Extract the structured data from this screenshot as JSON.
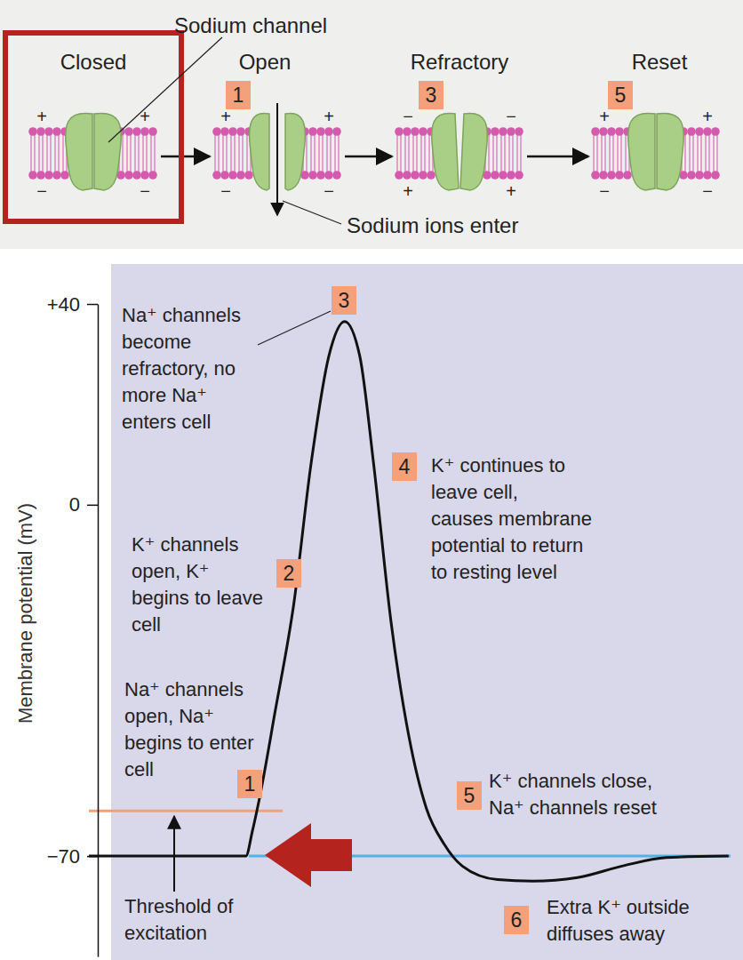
{
  "diagram": {
    "callout": "Sodium channel",
    "flow_label": "Sodium ions enter",
    "states": [
      {
        "label": "Closed",
        "step": null,
        "top_sign": "+",
        "bottom_sign": "−"
      },
      {
        "label": "Open",
        "step": 1,
        "top_sign": "+",
        "bottom_sign": "−"
      },
      {
        "label": "Refractory",
        "step": 3,
        "top_sign": "−",
        "bottom_sign": "+"
      },
      {
        "label": "Reset",
        "step": 5,
        "top_sign": "+",
        "bottom_sign": "−"
      }
    ]
  },
  "chart_data": {
    "type": "line",
    "y_label": "Membrane potential (mV)",
    "color": "#111111",
    "xlim": [
      0,
      100
    ],
    "ylim": [
      -90,
      40
    ],
    "yticks": [
      {
        "value": 40,
        "label": "+40"
      },
      0,
      {
        "value": -70,
        "label": "−70"
      }
    ],
    "tick_labels": "y",
    "grid": false,
    "x": [
      0,
      24,
      25,
      26,
      28.5,
      31.3,
      34,
      36.7,
      39.1,
      41.4,
      43.5,
      46.2,
      48.9,
      51.6,
      54.3,
      57.1,
      62.5,
      67.9,
      74.7,
      81.5,
      88.3,
      97.8
    ],
    "values": [
      -70,
      -70,
      -65,
      -59,
      -41,
      -20,
      8.5,
      29.7,
      36.5,
      29.7,
      8.5,
      -23.4,
      -46,
      -60.5,
      -67.6,
      -72,
      -74.7,
      -75,
      -74.3,
      -72,
      -70.3,
      -70
    ],
    "reference_lines": [
      {
        "value": -61,
        "color": "#f4a07a",
        "label": [
          "Threshold of",
          "excitation"
        ]
      },
      {
        "value": -70,
        "color": "#4fb3e8"
      }
    ],
    "annotations": [
      {
        "step": 1,
        "lines": [
          "Na⁺ channels",
          "open, Na⁺",
          "begins to enter",
          "cell"
        ]
      },
      {
        "step": 2,
        "lines": [
          "K⁺ channels",
          "open, K⁺",
          "begins to leave",
          "cell"
        ]
      },
      {
        "step": 3,
        "lines": [
          "Na⁺ channels",
          "become",
          "refractory, no",
          "more Na⁺",
          "enters cell"
        ]
      },
      {
        "step": 4,
        "lines": [
          "K⁺ continues to",
          "leave cell,",
          "causes membrane",
          "potential to return",
          "to resting level"
        ]
      },
      {
        "step": 5,
        "lines": [
          "K⁺ channels close,",
          "Na⁺ channels reset"
        ]
      },
      {
        "step": 6,
        "lines": [
          "Extra K⁺ outside",
          "diffuses away"
        ]
      }
    ]
  }
}
